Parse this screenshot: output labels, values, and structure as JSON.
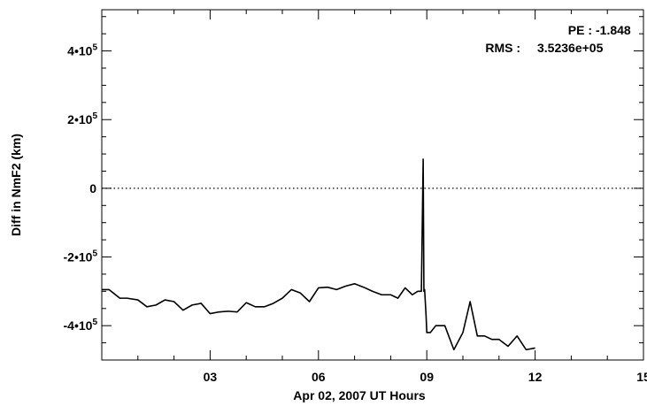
{
  "chart_data": {
    "type": "line",
    "title": "",
    "xlabel": "Apr 02, 2007 UT Hours",
    "ylabel": "Diff in NmF2 (km)",
    "xlim": [
      0,
      15
    ],
    "ylim": [
      -500000,
      520000
    ],
    "grid": false,
    "x_ticks": [
      {
        "value": 3,
        "label": "03"
      },
      {
        "value": 6,
        "label": "06"
      },
      {
        "value": 9,
        "label": "09"
      },
      {
        "value": 12,
        "label": "12"
      },
      {
        "value": 15,
        "label": "15"
      }
    ],
    "y_ticks": [
      {
        "value": -400000,
        "label": "-4•10",
        "exp": "5"
      },
      {
        "value": -200000,
        "label": "-2•10",
        "exp": "5"
      },
      {
        "value": 0,
        "label": "0",
        "exp": ""
      },
      {
        "value": 200000,
        "label": "2•10",
        "exp": "5"
      },
      {
        "value": 400000,
        "label": "4•10",
        "exp": "5"
      }
    ],
    "reference_line": {
      "y": 0,
      "style": "dotted"
    },
    "annotations": {
      "pe_label": "PE :",
      "pe_value": "-1.848",
      "rms_label": "RMS :",
      "rms_value": "3.5236e+05"
    },
    "series": [
      {
        "x": [
          0.0,
          0.2,
          0.5,
          0.7,
          1.0,
          1.25,
          1.5,
          1.75,
          2.0,
          2.25,
          2.5,
          2.75,
          3.0,
          3.25,
          3.5,
          3.75,
          4.0,
          4.25,
          4.5,
          4.75,
          5.0,
          5.25,
          5.5,
          5.75,
          6.0,
          6.25,
          6.5,
          6.75,
          7.0,
          7.25,
          7.5,
          7.75,
          8.0,
          8.2,
          8.4,
          8.6,
          8.75,
          8.85,
          8.9,
          8.92,
          8.94,
          8.98,
          9.0,
          9.1,
          9.25,
          9.5,
          9.75,
          10.0,
          10.2,
          10.4,
          10.6,
          10.8,
          11.0,
          11.25,
          11.5,
          11.75,
          12.0
        ],
        "y": [
          -295000,
          -295000,
          -320000,
          -320000,
          -325000,
          -345000,
          -340000,
          -325000,
          -330000,
          -355000,
          -340000,
          -335000,
          -365000,
          -360000,
          -358000,
          -360000,
          -333000,
          -345000,
          -345000,
          -335000,
          -320000,
          -295000,
          -305000,
          -330000,
          -290000,
          -288000,
          -295000,
          -285000,
          -278000,
          -288000,
          -300000,
          -310000,
          -310000,
          -320000,
          -290000,
          -310000,
          -300000,
          -300000,
          85000,
          -300000,
          -295000,
          -370000,
          -420000,
          -420000,
          -400000,
          -400000,
          -470000,
          -420000,
          -330000,
          -430000,
          -430000,
          -440000,
          -440000,
          -460000,
          -430000,
          -470000,
          -465000
        ]
      }
    ]
  }
}
